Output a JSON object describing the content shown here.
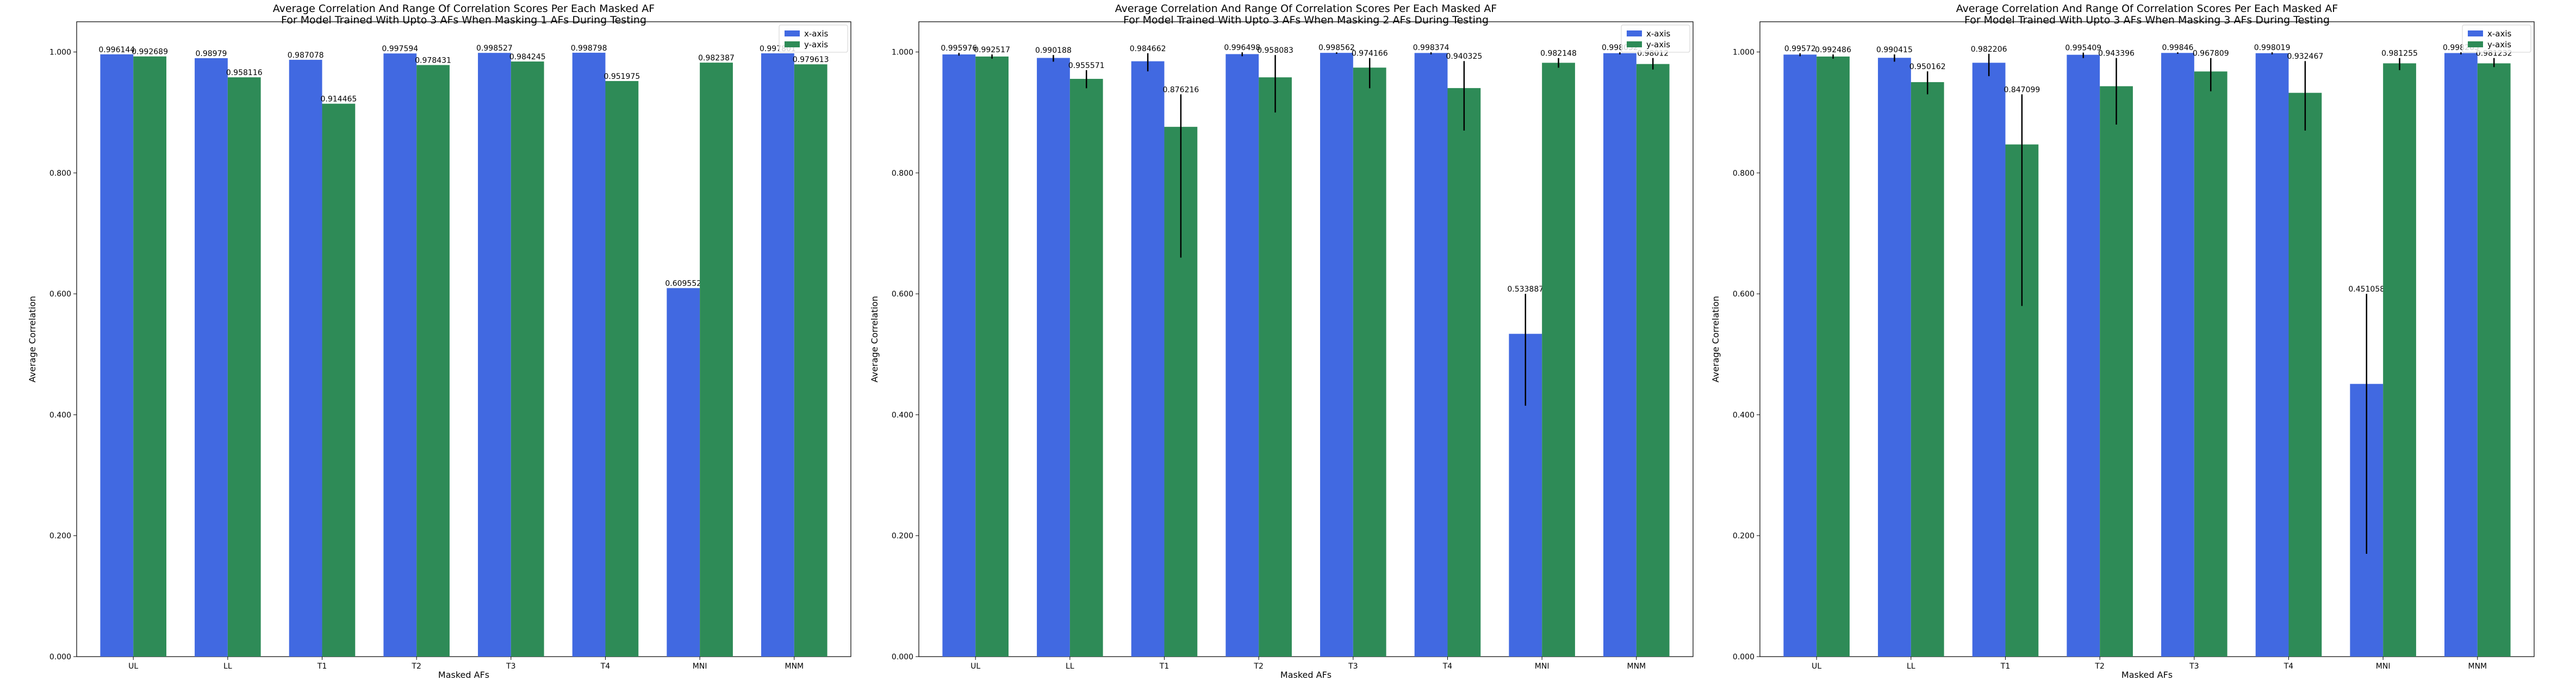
{
  "chart_data": [
    {
      "type": "bar",
      "title": "Average Correlation And Range Of Correlation Scores Per Each Masked AF",
      "subtitle": "For Model Trained With Upto 3 AFs When Masking 1 AFs During Testing",
      "xlabel": "Masked AFs",
      "ylabel": "Average Correlation",
      "ylim": [
        0,
        1.05
      ],
      "yticks": [
        "0.000",
        "0.200",
        "0.400",
        "0.600",
        "0.800",
        "1.000"
      ],
      "legend_position": "top-right",
      "categories": [
        "UL",
        "LL",
        "T1",
        "T2",
        "T3",
        "T4",
        "MNI",
        "MNM"
      ],
      "series": [
        {
          "name": "x-axis",
          "color": "#4169E1",
          "values": [
            0.996144,
            0.98979,
            0.987078,
            0.997594,
            0.998527,
            0.998798,
            0.609552,
            0.997801
          ],
          "labels": [
            "0.996144",
            "0.98979",
            "0.987078",
            "0.997594",
            "0.998527",
            "0.998798",
            "0.609552",
            "0.997801"
          ],
          "err_low": [
            0.996144,
            0.98979,
            0.987078,
            0.997594,
            0.998527,
            0.998798,
            0.609552,
            0.997801
          ],
          "err_high": [
            0.996144,
            0.98979,
            0.987078,
            0.997594,
            0.998527,
            0.998798,
            0.609552,
            0.997801
          ]
        },
        {
          "name": "y-axis",
          "color": "#2E8B57",
          "values": [
            0.992689,
            0.958116,
            0.914465,
            0.978431,
            0.984245,
            0.951975,
            0.982387,
            0.979613
          ],
          "labels": [
            "0.992689",
            "0.958116",
            "0.914465",
            "0.978431",
            "0.984245",
            "0.951975",
            "0.982387",
            "0.979613"
          ],
          "err_low": [
            0.992689,
            0.958116,
            0.914465,
            0.978431,
            0.984245,
            0.951975,
            0.982387,
            0.979613
          ],
          "err_high": [
            0.992689,
            0.958116,
            0.914465,
            0.978431,
            0.984245,
            0.951975,
            0.982387,
            0.979613
          ]
        }
      ]
    },
    {
      "type": "bar",
      "title": "Average Correlation And Range Of Correlation Scores Per Each Masked AF",
      "subtitle": "For Model Trained With Upto 3 AFs When Masking 2 AFs During Testing",
      "xlabel": "Masked AFs",
      "ylabel": "Average Correlation",
      "ylim": [
        0,
        1.05
      ],
      "yticks": [
        "0.000",
        "0.200",
        "0.400",
        "0.600",
        "0.800",
        "1.000"
      ],
      "legend_position": "top-right",
      "categories": [
        "UL",
        "LL",
        "T1",
        "T2",
        "T3",
        "T4",
        "MNI",
        "MNM"
      ],
      "series": [
        {
          "name": "x-axis",
          "color": "#4169E1",
          "values": [
            0.995976,
            0.990188,
            0.984662,
            0.996498,
            0.998562,
            0.998374,
            0.533887,
            0.998032
          ],
          "labels": [
            "0.995976",
            "0.990188",
            "0.984662",
            "0.996498",
            "0.998562",
            "0.998374",
            "0.533887",
            "0.998032"
          ],
          "err_low": [
            0.994,
            0.984,
            0.968,
            0.993,
            0.997,
            0.996,
            0.415,
            0.996
          ],
          "err_high": [
            0.9985,
            0.995,
            0.998,
            0.9995,
            0.9995,
            0.9995,
            0.6,
            0.9995
          ]
        },
        {
          "name": "y-axis",
          "color": "#2E8B57",
          "values": [
            0.992517,
            0.955571,
            0.876216,
            0.958083,
            0.974166,
            0.940325,
            0.982148,
            0.98012
          ],
          "labels": [
            "0.992517",
            "0.955571",
            "0.876216",
            "0.958083",
            "0.974166",
            "0.940325",
            "0.982148",
            "0.98012"
          ],
          "err_low": [
            0.989,
            0.94,
            0.66,
            0.9,
            0.94,
            0.87,
            0.974,
            0.971
          ],
          "err_high": [
            0.996,
            0.97,
            0.93,
            0.995,
            0.99,
            0.985,
            0.99,
            0.99
          ]
        }
      ]
    },
    {
      "type": "bar",
      "title": "Average Correlation And Range Of Correlation Scores Per Each Masked AF",
      "subtitle": "For Model Trained With Upto 3 AFs When Masking 3 AFs During Testing",
      "xlabel": "Masked AFs",
      "ylabel": "Average Correlation",
      "ylim": [
        0,
        1.05
      ],
      "yticks": [
        "0.000",
        "0.200",
        "0.400",
        "0.600",
        "0.800",
        "1.000"
      ],
      "legend_position": "top-right",
      "categories": [
        "UL",
        "LL",
        "T1",
        "T2",
        "T3",
        "T4",
        "MNI",
        "MNM"
      ],
      "series": [
        {
          "name": "x-axis",
          "color": "#4169E1",
          "values": [
            0.99572,
            0.990415,
            0.982206,
            0.995409,
            0.99846,
            0.998019,
            0.451058,
            0.998265
          ],
          "labels": [
            "0.99572",
            "0.990415",
            "0.982206",
            "0.995409",
            "0.99846",
            "0.998019",
            "0.451058",
            "0.998265"
          ],
          "err_low": [
            0.993,
            0.984,
            0.96,
            0.99,
            0.997,
            0.996,
            0.17,
            0.996
          ],
          "err_high": [
            0.998,
            0.996,
            0.997,
            0.999,
            0.9995,
            0.9995,
            0.6,
            0.9995
          ]
        },
        {
          "name": "y-axis",
          "color": "#2E8B57",
          "values": [
            0.992486,
            0.950162,
            0.847099,
            0.943396,
            0.967809,
            0.932467,
            0.981255,
            0.981232
          ],
          "labels": [
            "0.992486",
            "0.950162",
            "0.847099",
            "0.943396",
            "0.967809",
            "0.932467",
            "0.981255",
            "0.981232"
          ],
          "err_low": [
            0.989,
            0.93,
            0.58,
            0.88,
            0.935,
            0.87,
            0.97,
            0.975
          ],
          "err_high": [
            0.996,
            0.968,
            0.93,
            0.99,
            0.99,
            0.985,
            0.99,
            0.99
          ]
        }
      ]
    }
  ]
}
